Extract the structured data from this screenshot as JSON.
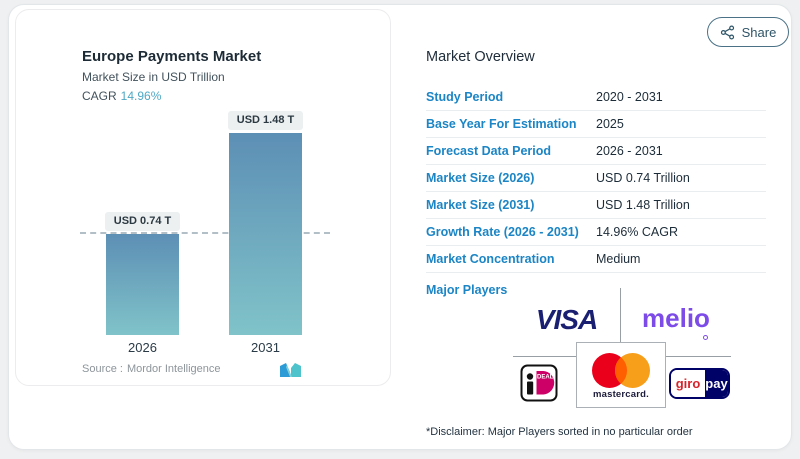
{
  "share": {
    "label": "Share"
  },
  "chart_panel": {
    "title": "Europe Payments Market",
    "subtitle": "Market Size in USD Trillion",
    "cagr_label": "CAGR",
    "cagr_value": "14.96%",
    "source_label": "Source :",
    "source_value": "Mordor Intelligence"
  },
  "chart_data": {
    "type": "bar",
    "title": "Europe Payments Market",
    "ylabel": "Market Size in USD Trillion",
    "categories": [
      "2026",
      "2031"
    ],
    "values": [
      0.74,
      1.48
    ],
    "bar_labels": [
      "USD 0.74 T",
      "USD 1.48 T"
    ],
    "ylim": [
      0,
      1.6
    ],
    "reference_line": 0.74,
    "cagr": "14.96%",
    "legend": "off",
    "grid": "off",
    "colors": {
      "bar_gradient_top": "#5d8fb5",
      "bar_gradient_bottom": "#80c3c9",
      "dashed_line": "#b3bfc6",
      "label_pill_bg": "#edf0f1"
    }
  },
  "overview": {
    "heading": "Market Overview",
    "rows": [
      {
        "label": "Study Period",
        "value": "2020 - 2031"
      },
      {
        "label": "Base Year For Estimation",
        "value": "2025"
      },
      {
        "label": "Forecast Data Period",
        "value": "2026 - 2031"
      },
      {
        "label": "Market Size (2026)",
        "value": "USD 0.74 Trillion"
      },
      {
        "label": "Market Size (2031)",
        "value": "USD 1.48 Trillion"
      },
      {
        "label": "Growth Rate (2026 - 2031)",
        "value": "14.96% CAGR"
      },
      {
        "label": "Market Concentration",
        "value": "Medium"
      }
    ],
    "major_players_label": "Major Players",
    "players": {
      "visa": "VISA",
      "melio": "melio",
      "ideal": "iDEAL",
      "mastercard": "mastercard.",
      "giropay_left": "giro",
      "giropay_right": "pay"
    },
    "disclaimer": "*Disclaimer: Major Players sorted in no particular order"
  },
  "colors": {
    "label_blue": "#1b85c5",
    "value_dark": "#1c2c39",
    "cagr_teal": "#4fa8c4",
    "visa_navy": "#1a1f71",
    "melio_purple": "#7d4ce8",
    "mastercard_red": "#eb001b",
    "mastercard_orange": "#f79e1b",
    "mastercard_overlap": "#ff5f00",
    "ideal_magenta": "#cc0066",
    "giropay_navy": "#000268",
    "giropay_red": "#d8232a"
  }
}
